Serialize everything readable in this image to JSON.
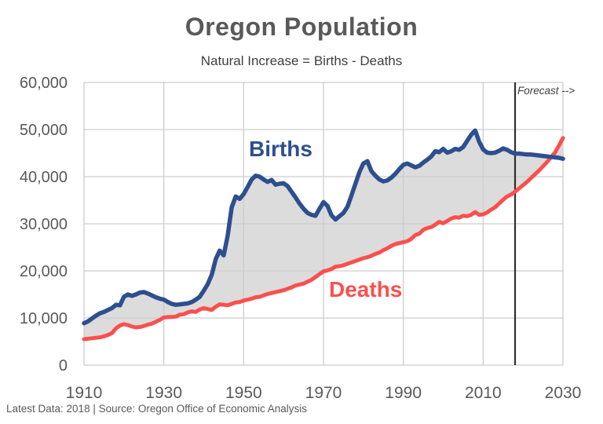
{
  "header": {
    "title": "Oregon Population",
    "subtitle": "Natural Increase = Births - Deaths"
  },
  "annotations": {
    "births_label": "Births",
    "deaths_label": "Deaths",
    "forecast_label": "Forecast -->"
  },
  "footer": {
    "text": "Latest Data: 2018  |  Source: Oregon Office of Economic Analysis"
  },
  "colors": {
    "births_line": "#2d4f8f",
    "deaths_line": "#f9504e",
    "area_fill": "#dcdcdc",
    "gridline": "#cdcdcd",
    "forecast_line": "#2f2f2f",
    "title_text": "#595959",
    "axis_text": "#595959"
  },
  "chart_data": {
    "type": "line",
    "title": "Oregon Population",
    "subtitle": "Natural Increase = Births - Deaths",
    "xlabel": "",
    "ylabel": "",
    "grid": true,
    "legend_position": "inline-annotations",
    "x_start": 1910,
    "x_end": 2030,
    "x_ticks": [
      1910,
      1930,
      1950,
      1970,
      1990,
      2010,
      2030
    ],
    "y_ticks": [
      0,
      10000,
      20000,
      30000,
      40000,
      50000,
      60000
    ],
    "y_tick_labels": [
      "0",
      "10,000",
      "20,000",
      "30,000",
      "40,000",
      "50,000",
      "60,000"
    ],
    "ylim": [
      0,
      60000
    ],
    "forecast_start_year": 2018,
    "fill_between_series": true,
    "series": [
      {
        "name": "Births",
        "color": "#2d4f8f",
        "values": [
          8900,
          9300,
          9900,
          10500,
          11000,
          11300,
          11700,
          12100,
          12800,
          12700,
          14500,
          15000,
          14700,
          15000,
          15400,
          15500,
          15200,
          14800,
          14400,
          14100,
          13900,
          13400,
          13000,
          12800,
          12900,
          13000,
          13100,
          13400,
          13900,
          14500,
          15800,
          17200,
          19200,
          22500,
          24300,
          23300,
          27500,
          33500,
          35800,
          35300,
          36300,
          37800,
          39400,
          40200,
          40000,
          39400,
          38900,
          39300,
          38300,
          38500,
          38600,
          38000,
          36800,
          35600,
          34300,
          33200,
          32300,
          31900,
          31700,
          33200,
          34600,
          33800,
          31800,
          30900,
          31600,
          32300,
          33600,
          36000,
          38500,
          41000,
          42800,
          43300,
          41200,
          40200,
          39400,
          39000,
          39200,
          39800,
          40600,
          41600,
          42500,
          42800,
          42400,
          42000,
          42300,
          43000,
          43600,
          44300,
          45400,
          45200,
          45900,
          45100,
          45400,
          45900,
          45700,
          46300,
          47600,
          48900,
          49800,
          47400,
          45800,
          45100,
          45000,
          45100,
          45500,
          46000,
          45700,
          45200,
          44900,
          44900,
          44800,
          44700,
          44700,
          44600,
          44500,
          44400,
          44300,
          44200,
          44100,
          44000,
          43800
        ]
      },
      {
        "name": "Deaths",
        "color": "#f9504e",
        "values": [
          5500,
          5600,
          5700,
          5800,
          5900,
          6100,
          6400,
          6800,
          7800,
          8400,
          8700,
          8500,
          8200,
          8000,
          8100,
          8300,
          8600,
          8800,
          9200,
          9600,
          10100,
          10200,
          10200,
          10300,
          10700,
          10800,
          11200,
          11400,
          11300,
          11800,
          12100,
          11900,
          11700,
          12400,
          12900,
          12800,
          12700,
          13000,
          13300,
          13400,
          13700,
          13900,
          14100,
          14400,
          14500,
          14800,
          15100,
          15300,
          15500,
          15700,
          15900,
          16200,
          16500,
          16900,
          17100,
          17300,
          17700,
          18100,
          18700,
          19300,
          19900,
          20100,
          20400,
          20900,
          21000,
          21200,
          21500,
          21800,
          22100,
          22400,
          22700,
          22900,
          23200,
          23600,
          23900,
          24400,
          24800,
          25300,
          25700,
          25900,
          26100,
          26300,
          26800,
          27600,
          27900,
          28700,
          29100,
          29300,
          29800,
          30400,
          30100,
          30600,
          31100,
          31400,
          31300,
          31700,
          31600,
          31900,
          32500,
          31900,
          32000,
          32400,
          33000,
          33500,
          34300,
          35100,
          35800,
          36200,
          36800,
          37500,
          38200,
          38900,
          39700,
          40500,
          41300,
          42200,
          43100,
          44100,
          45100,
          46600,
          48200
        ]
      }
    ]
  }
}
